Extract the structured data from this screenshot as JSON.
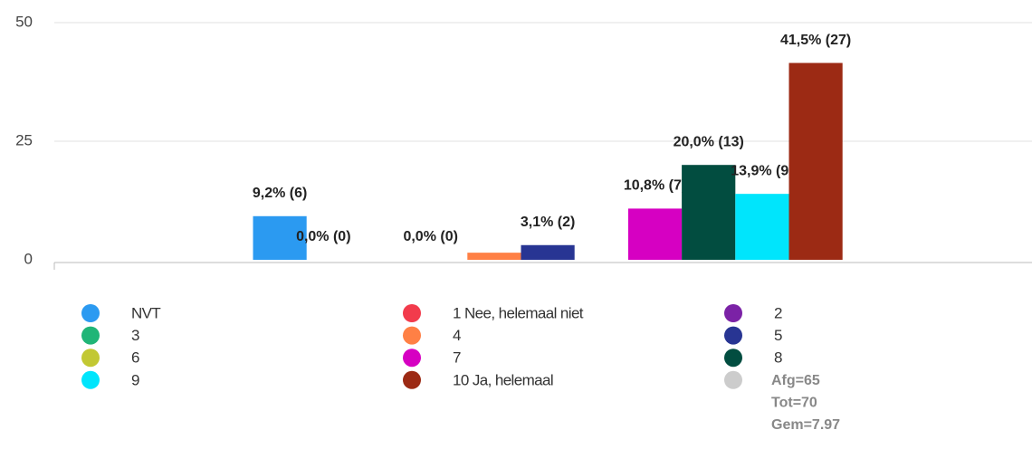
{
  "chart_data": {
    "type": "bar",
    "categories": [
      null
    ],
    "ylim": [
      0,
      50
    ],
    "yticks": [
      0,
      25,
      50
    ],
    "grid": true,
    "series": [
      {
        "name": "NVT",
        "color": "#2b9af1",
        "values": [
          9.2
        ],
        "value_labels": [
          "9,2% (6)"
        ]
      },
      {
        "name": "1 Nee, helemaal niet",
        "color": "#f23b4c",
        "values": [
          0
        ],
        "value_labels": [
          "0,0% (0)"
        ]
      },
      {
        "name": "2",
        "color": "#7b22a6",
        "values": [
          0
        ],
        "value_labels": [
          null
        ]
      },
      {
        "name": "3",
        "color": "#20b577",
        "values": [
          0
        ],
        "value_labels": [
          "0,0% (0)"
        ]
      },
      {
        "name": "4",
        "color": "#ff8045",
        "values": [
          1.5
        ],
        "value_labels": [
          null
        ]
      },
      {
        "name": "5",
        "color": "#283593",
        "values": [
          3.1
        ],
        "value_labels": [
          "3,1% (2)"
        ]
      },
      {
        "name": "6",
        "color": "#c2c833",
        "values": [
          0
        ],
        "value_labels": [
          null
        ]
      },
      {
        "name": "7",
        "color": "#d600c2",
        "values": [
          10.8
        ],
        "value_labels": [
          "10,8% (7)"
        ]
      },
      {
        "name": "8",
        "color": "#024d40",
        "values": [
          20.0
        ],
        "value_labels": [
          "20,0% (13)"
        ]
      },
      {
        "name": "9",
        "color": "#00e5fc",
        "values": [
          13.9
        ],
        "value_labels": [
          "13,9% (9)"
        ]
      },
      {
        "name": "10 Ja, helemaal",
        "color": "#9c2a14",
        "values": [
          41.5
        ],
        "value_labels": [
          "41,5% (27)"
        ]
      }
    ],
    "legend_note": [
      "Afg=65",
      "Tot=70",
      "Gem=7.97"
    ],
    "legend_note_color": "#cccccc"
  }
}
